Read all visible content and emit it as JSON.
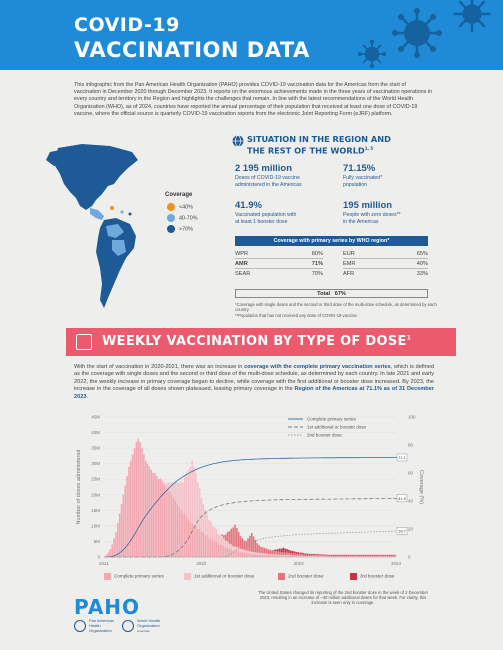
{
  "header": {
    "title_line1": "COVID-19",
    "title_line2": "VACCINATION DATA"
  },
  "intro": "This infographic from the Pan American Health Organization (PAHO) provides COVID-19 vaccination data for the Americas from the start of vaccination in December 2020 through December 2023. It reports on the enormous achievements made in the three years of vaccination operations in every country and territory in the Region and highlights the challenges that remain. In line with the latest recommendations of the World Health Organization (WHO), as of 2024, countries have reported the annual percentage of their population that received at least one dose of COVID-19 vaccine, where the official source is quarterly COVID-19 vaccination reports from the electronic Joint Reporting Form (eJRF) platform.",
  "coverage_legend": {
    "title": "Coverage",
    "items": [
      {
        "label": "<40%",
        "color": "#f0921e"
      },
      {
        "label": "40-70%",
        "color": "#6fa8dc"
      },
      {
        "label": ">70%",
        "color": "#1e5a96"
      }
    ]
  },
  "situation": {
    "title_line1": "SITUATION IN THE REGION AND",
    "title_line2": "THE REST OF THE WORLD",
    "title_sup": "1, 5",
    "stats": [
      {
        "value": "2 195 million",
        "desc_line1": "Doses of COVID-19 vaccine",
        "desc_line2": "administered in the Americas"
      },
      {
        "value": "71.15%",
        "desc_line1": "Fully vaccinated*",
        "desc_line2": "population"
      },
      {
        "value": "41.9%",
        "desc_line1": "Vaccinated population with",
        "desc_line2": "at least 1 booster dose"
      },
      {
        "value": "195 million",
        "desc_line1": "People with zero doses**",
        "desc_line2": "in the Americas"
      }
    ],
    "who_bar": "Coverage with primary series by WHO region*",
    "regions_left": [
      {
        "name": "WPR",
        "pct": "80%"
      },
      {
        "name": "AMR",
        "pct": "71%"
      },
      {
        "name": "SEAR",
        "pct": "70%"
      }
    ],
    "regions_right": [
      {
        "name": "EUR",
        "pct": "65%"
      },
      {
        "name": "EMR",
        "pct": "40%"
      },
      {
        "name": "AFR",
        "pct": "33%"
      }
    ],
    "total_label": "Total",
    "total_value": "67%",
    "note1": "*Coverage with single doses and the second or third dose of the multi-dose schedule, as determined by each country.",
    "note2": "**Population that has not received any dose of COVID-19 vaccine."
  },
  "weekly": {
    "title": "WEEKLY VACCINATION BY TYPE OF DOSE",
    "sup": "1"
  },
  "body": {
    "p1": "With the start of vaccination in 2020-2021, there was an increase in ",
    "b1": "coverage with the complete primary vaccination series",
    "p2": ", which is defined as the coverage with single doses and the second or third dose of the multi-dose schedule, as determined by each country. In late 2021 and early 2022, the weekly increase in primary coverage began to decline, while coverage with the first additional or booster dose increased. By 2023, the increase in the coverage of all doses shown plateaued, leaving primary coverage in the ",
    "b2": "Region of the Americas at 71.1% as of 31 December 2023",
    "p3": "."
  },
  "chart_data": {
    "type": "bar",
    "ylabel_left": "Number of doses administered",
    "ylabel_right": "Coverage (%)",
    "y_left_ticks": [
      "0",
      "5M",
      "10M",
      "15M",
      "20M",
      "25M",
      "30M",
      "35M",
      "40M",
      "45M"
    ],
    "y_right_ticks": [
      "0",
      "20",
      "40",
      "60",
      "80",
      "100"
    ],
    "x_ticks": [
      "2021",
      "2022",
      "2023",
      "2024"
    ],
    "line_legend": [
      "Complete primary series",
      "1st additional or booster dose",
      "2nd booster dose"
    ],
    "end_labels": [
      "71.1",
      "41.9",
      "18.7"
    ],
    "bar_legend": [
      "Complete primary series",
      "1st additional or booster dose",
      "2nd booster dose",
      "3rd booster dose"
    ],
    "colors": {
      "primary": "#f3a7b1",
      "booster1": "#f6c2c9",
      "booster2": "#e8727f",
      "booster3": "#c8334a",
      "line_primary": "#2f6da8",
      "line_booster1": "#7a7a7a",
      "line_booster2": "#9a9a9a"
    },
    "weeks": 157,
    "weekly_primary_doses_millions": [
      0.3,
      0.8,
      1.5,
      2.5,
      4,
      6,
      8,
      11,
      14,
      17,
      20,
      23,
      26,
      29,
      31,
      33,
      35,
      37,
      38,
      37,
      35,
      33,
      31,
      30,
      29,
      28,
      27,
      27,
      26,
      25,
      25,
      24,
      23,
      22,
      22,
      21,
      20,
      19,
      18,
      17,
      16,
      15,
      14,
      14,
      13,
      12,
      11,
      11,
      10,
      10,
      9,
      9,
      8,
      8,
      7,
      7,
      6,
      6,
      5,
      5,
      5,
      4,
      4,
      4,
      3.5,
      3,
      3,
      2.5,
      2.5,
      2,
      2,
      2,
      1.8,
      1.6,
      1.5,
      1.4,
      1.3,
      1.2,
      1.1,
      1,
      1,
      0.9,
      0.9,
      0.8,
      0.8,
      0.7,
      0.7,
      0.7,
      0.6,
      0.6,
      0.6,
      0.5,
      0.5,
      0.5,
      0.5,
      0.4,
      0.4,
      0.4,
      0.4,
      0.4,
      0.3,
      0.3,
      0.3,
      0.3,
      0.3,
      0.3,
      0.3,
      0.2,
      0.2,
      0.2,
      0.2,
      0.2,
      0.2,
      0.2,
      0.2,
      0.2,
      0.2,
      0.2,
      0.2,
      0.2,
      0.1,
      0.1,
      0.1,
      0.1,
      0.1,
      0.1,
      0.1,
      0.1,
      0.1,
      0.1,
      0.1,
      0.1,
      0.1,
      0.1,
      0.1,
      0.1,
      0.1,
      0.1,
      0.1,
      0.1,
      0.1,
      0.1,
      0.1,
      0.1,
      0.1,
      0.1,
      0.1,
      0.1,
      0.1,
      0.1,
      0.1,
      0.1,
      0.1,
      0.1,
      0.1,
      0.1,
      0.1,
      0.1,
      0.1
    ],
    "weekly_booster1_doses_millions": [
      0,
      0,
      0,
      0,
      0,
      0,
      0,
      0,
      0,
      0,
      0,
      0,
      0,
      0,
      0,
      0,
      0,
      0,
      0,
      0,
      0,
      0,
      0,
      0,
      0,
      0,
      0,
      0,
      0,
      0,
      0.3,
      0.6,
      1,
      1.5,
      2,
      3,
      4,
      5,
      6,
      7,
      8,
      9,
      10,
      12,
      14,
      16,
      18,
      20,
      19,
      17,
      15,
      13,
      11,
      9,
      8,
      7,
      6,
      5.5,
      5,
      4.5,
      4,
      3.5,
      3,
      2.8,
      2.5,
      2.2,
      2,
      1.8,
      1.6,
      1.5,
      1.4,
      1.3,
      1.2,
      1.1,
      1,
      0.9,
      0.8,
      0.8,
      0.7,
      0.7,
      0.6,
      0.6,
      0.5,
      0.5,
      0.5,
      0.4,
      0.4,
      0.4,
      0.3,
      0.3,
      0.3,
      0.3,
      0.3,
      0.2,
      0.2,
      0.2,
      0.2,
      0.2,
      0.2,
      0.2,
      0.2,
      0.2,
      0.2,
      0.1,
      0.1,
      0.1,
      0.1,
      0.1,
      0.1,
      0.1,
      0.1,
      0.1,
      0.1,
      0.1,
      0.1,
      0.1,
      0.1,
      0.1,
      0.1,
      0.1,
      0.1,
      0.1,
      0.1,
      0.1,
      0.1,
      0.1,
      0.1,
      0.1,
      0.1,
      0.1,
      0.1,
      0.1,
      0.1,
      0.1,
      0.1,
      0.1,
      0.1,
      0.1,
      0.1,
      0.1,
      0.1,
      0.1,
      0.1,
      0.1,
      0.1,
      0.1,
      0.1,
      0.1,
      0.1,
      0.1,
      0.1,
      0.1,
      0.1,
      0.1,
      0.1,
      0.1,
      0.1,
      0.1,
      0.1,
      0.1,
      0.1
    ],
    "weekly_booster2_doses_millions": [
      0,
      0,
      0,
      0,
      0,
      0,
      0,
      0,
      0,
      0,
      0,
      0,
      0,
      0,
      0,
      0,
      0,
      0,
      0,
      0,
      0,
      0,
      0,
      0,
      0,
      0,
      0,
      0,
      0,
      0,
      0,
      0,
      0,
      0,
      0,
      0,
      0,
      0,
      0,
      0,
      0,
      0,
      0,
      0,
      0,
      0,
      0,
      0,
      0,
      0,
      0,
      0,
      0,
      0,
      0,
      0,
      0,
      0,
      0,
      0,
      0,
      0,
      0,
      0.5,
      1,
      2,
      3,
      4,
      5,
      6,
      7,
      6,
      5,
      4,
      3.5,
      3,
      3,
      4,
      5,
      6,
      5,
      4,
      3,
      2.5,
      2,
      2,
      1.8,
      1.6,
      1.5,
      1.4,
      1.3,
      1.2,
      1.1,
      1,
      1,
      0.9,
      0.9,
      0.8,
      0.8,
      0.7,
      0.7,
      0.6,
      0.6,
      0.6,
      0.5,
      0.5,
      0.5,
      0.5,
      0.4,
      0.4,
      0.4,
      0.4,
      0.4,
      0.4,
      0.3,
      0.3,
      0.3,
      0.3,
      0.3,
      0.3,
      0.3,
      0.3,
      0.3,
      0.3,
      0.3,
      0.3,
      0.3,
      0.3,
      0.3,
      0.3,
      0.3,
      0.3,
      0.3,
      0.3,
      0.3,
      0.3,
      0.3,
      0.3,
      0.3,
      0.3,
      0.3,
      0.3,
      0.3,
      0.3,
      0.3,
      0.3,
      0.3,
      0.3,
      0.3,
      0.3,
      0.3,
      0.3,
      0.3,
      0.3,
      0.3,
      0.3,
      0.3,
      0.3,
      0.3,
      0.3,
      7
    ],
    "weekly_booster3_doses_millions": [
      0,
      0,
      0,
      0,
      0,
      0,
      0,
      0,
      0,
      0,
      0,
      0,
      0,
      0,
      0,
      0,
      0,
      0,
      0,
      0,
      0,
      0,
      0,
      0,
      0,
      0,
      0,
      0,
      0,
      0,
      0,
      0,
      0,
      0,
      0,
      0,
      0,
      0,
      0,
      0,
      0,
      0,
      0,
      0,
      0,
      0,
      0,
      0,
      0,
      0,
      0,
      0,
      0,
      0,
      0,
      0,
      0,
      0,
      0,
      0,
      0,
      0,
      0,
      0,
      0,
      0,
      0,
      0,
      0,
      0,
      0,
      0,
      0,
      0,
      0,
      0,
      0,
      0,
      0,
      0,
      0,
      0,
      0,
      0,
      0,
      0,
      0,
      0,
      0,
      0,
      0,
      0.3,
      0.5,
      0.8,
      1,
      1.2,
      1.5,
      1.3,
      1.2,
      1,
      0.9,
      0.8,
      0.7,
      0.6,
      0.6,
      0.5,
      0.5,
      0.4,
      0.4,
      0.4,
      0.3,
      0.3,
      0.3,
      0.3,
      0.3,
      0.3,
      0.2,
      0.2,
      0.2,
      0.2,
      0.2,
      0.2,
      0.2,
      0.2,
      0.2,
      0.2,
      0.2,
      0.2,
      0.2,
      0.2,
      0.2,
      0.2,
      0.2,
      0.2,
      0.2,
      0.2,
      0.2,
      0.2,
      0.2,
      0.2,
      0.2,
      0.2,
      0.2,
      0.2,
      0.2,
      0.2,
      0.2,
      0.2,
      0.2,
      0.2,
      0.2,
      0.2,
      0.2,
      0.2,
      0.2,
      0.2,
      0.2
    ],
    "coverage_pct_primary_start_week": [
      0,
      0
    ],
    "y_left_max": 45,
    "y_right_max": 100
  },
  "footer": {
    "logo": "PAHO",
    "org1": [
      "Pan American",
      "Health",
      "Organization"
    ],
    "org2": [
      "World Health",
      "Organization",
      "Americas"
    ],
    "note": "The United States changed its reporting of the 2nd booster dose in the week of 2 December 2023, resulting in an increase of ~40 million additional doses for that week. For clarity, this increase is seen only in coverage."
  }
}
